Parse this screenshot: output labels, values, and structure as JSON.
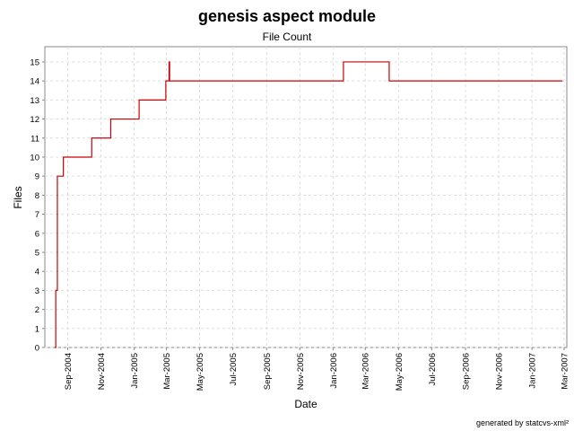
{
  "chart_data": {
    "type": "line",
    "step": true,
    "title": "genesis aspect module",
    "subtitle": "File Count",
    "xlabel": "Date",
    "ylabel": "Files",
    "ylim": [
      0,
      15.8
    ],
    "xlim": [
      "2004-07-21",
      "2007-03-06"
    ],
    "grid": true,
    "color": "#cc0000",
    "x_ticks": [
      "2004-09-01",
      "2004-11-01",
      "2005-01-01",
      "2005-03-01",
      "2005-05-01",
      "2005-07-01",
      "2005-09-01",
      "2005-11-01",
      "2006-01-01",
      "2006-03-01",
      "2006-05-01",
      "2006-07-01",
      "2006-09-01",
      "2006-11-01",
      "2007-01-01",
      "2007-03-01"
    ],
    "x_tick_labels": [
      "Sep-2004",
      "Nov-2004",
      "Jan-2005",
      "Mar-2005",
      "May-2005",
      "Jul-2005",
      "Sep-2005",
      "Nov-2005",
      "Jan-2006",
      "Mar-2006",
      "May-2006",
      "Jul-2006",
      "Sep-2006",
      "Nov-2006",
      "Jan-2007",
      "Mar-2007"
    ],
    "y_ticks": [
      0,
      1,
      2,
      3,
      4,
      5,
      6,
      7,
      8,
      9,
      10,
      11,
      12,
      13,
      14,
      15
    ],
    "series": [
      {
        "x": [
          "2004-08-08",
          "2004-08-10",
          "2004-08-13",
          "2004-08-24",
          "2004-10-15",
          "2004-11-19",
          "2005-01-10",
          "2005-02-28",
          "2005-03-06",
          "2005-03-07",
          "2006-01-20",
          "2006-04-14",
          "2007-02-26"
        ],
        "y": [
          0,
          3,
          9,
          10,
          11,
          12,
          13,
          14,
          15,
          14,
          15,
          14,
          14
        ]
      }
    ]
  },
  "footer": "generated by statcvs-xml²"
}
